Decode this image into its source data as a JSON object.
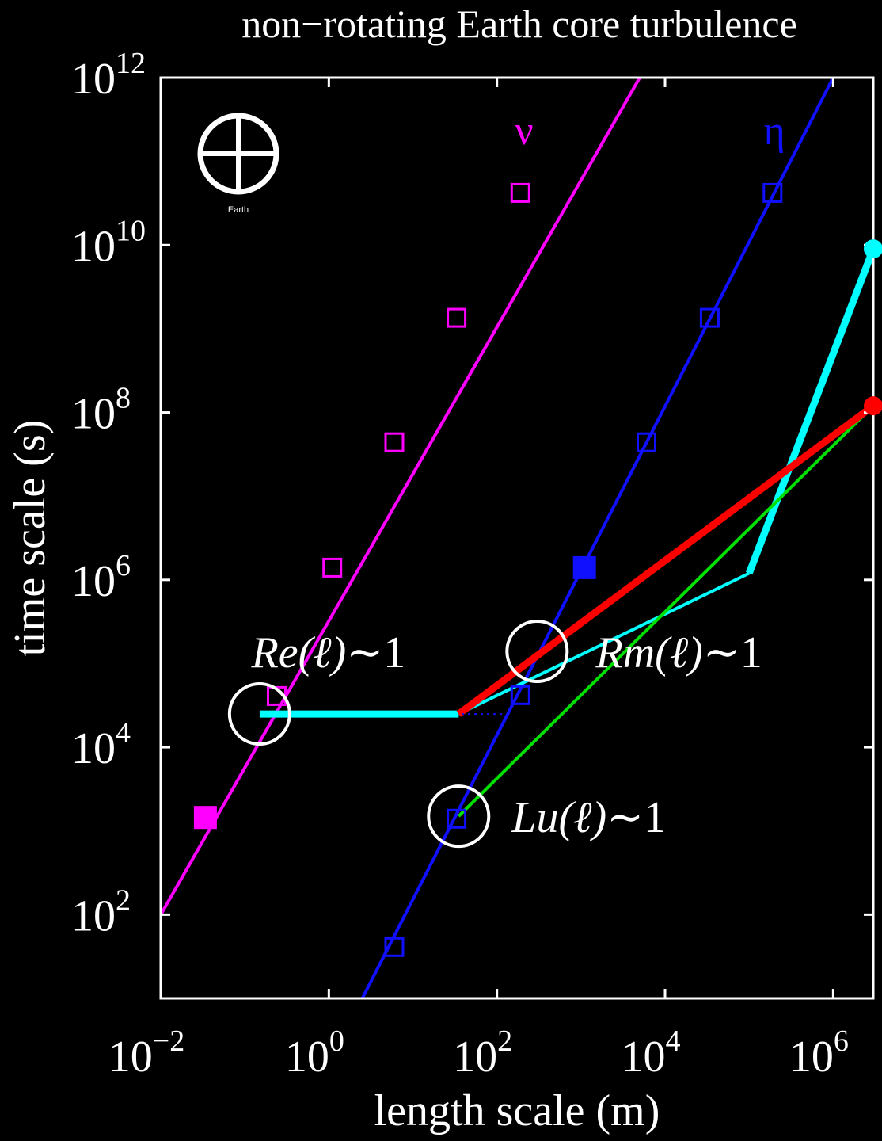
{
  "chart_data": {
    "type": "line",
    "title": "non−rotating Earth core turbulence",
    "xlabel": "length scale (m)",
    "ylabel": "time scale (s)",
    "xscale": "log",
    "yscale": "log",
    "xlim": [
      0.01,
      3000000
    ],
    "ylim": [
      10,
      1000000000000
    ],
    "xticks": [
      {
        "value": 0.01,
        "base": "10",
        "exp": "−2"
      },
      {
        "value": 1,
        "base": "10",
        "exp": "0"
      },
      {
        "value": 100,
        "base": "10",
        "exp": "2"
      },
      {
        "value": 10000,
        "base": "10",
        "exp": "4"
      },
      {
        "value": 1000000,
        "base": "10",
        "exp": "6"
      }
    ],
    "yticks": [
      {
        "value": 100,
        "base": "10",
        "exp": "2"
      },
      {
        "value": 10000,
        "base": "10",
        "exp": "4"
      },
      {
        "value": 1000000,
        "base": "10",
        "exp": "6"
      },
      {
        "value": 100000000,
        "base": "10",
        "exp": "8"
      },
      {
        "value": 10000000000,
        "base": "10",
        "exp": "10"
      },
      {
        "value": 1000000000000,
        "base": "10",
        "exp": "12"
      }
    ],
    "grid": false,
    "series": [
      {
        "name": "ν",
        "color": "#ff00ff",
        "x": [
          0.01,
          5000
        ],
        "y": [
          100,
          1000000000000
        ],
        "markers": [
          {
            "x": 0.034,
            "y": 1450,
            "filled": true
          },
          {
            "x": 0.24,
            "y": 41000,
            "filled": false
          },
          {
            "x": 1.1,
            "y": 1400000,
            "filled": false
          },
          {
            "x": 6.0,
            "y": 44000000,
            "filled": false
          },
          {
            "x": 33,
            "y": 1350000000,
            "filled": false
          },
          {
            "x": 190,
            "y": 42000000000,
            "filled": false
          }
        ]
      },
      {
        "name": "η",
        "color": "#1010ff",
        "x": [
          2.5,
          1000000
        ],
        "y": [
          10,
          1000000000000
        ],
        "markers": [
          {
            "x": 6.0,
            "y": 41,
            "filled": false
          },
          {
            "x": 33,
            "y": 1400,
            "filled": false
          },
          {
            "x": 190,
            "y": 42000,
            "filled": false
          },
          {
            "x": 1100,
            "y": 1400000,
            "filled": true
          },
          {
            "x": 6000,
            "y": 44000000,
            "filled": false
          },
          {
            "x": 34000,
            "y": 1350000000,
            "filled": false
          },
          {
            "x": 190000,
            "y": 42000000000,
            "filled": false
          }
        ]
      },
      {
        "color": "#00ffff",
        "width": 9,
        "x": [
          0.15,
          35
        ],
        "y": [
          25000,
          25000
        ]
      },
      {
        "color": "#00ffff",
        "width": 4,
        "x": [
          35,
          100000
        ],
        "y": [
          25000,
          1200000
        ]
      },
      {
        "color": "#00ffff",
        "width": 9,
        "x": [
          100000,
          3000000
        ],
        "y": [
          1200000,
          9000000000
        ],
        "end_dot": true
      },
      {
        "color": "#00e000",
        "width": 4,
        "x": [
          35,
          3000000
        ],
        "y": [
          1500,
          120000000
        ]
      },
      {
        "color": "#ff0000",
        "width": 9,
        "x": [
          35,
          3000000
        ],
        "y": [
          25000,
          120000000
        ],
        "end_dot": true
      },
      {
        "color": "#1010ff",
        "width": 2,
        "dotted": true,
        "x": [
          38,
          120
        ],
        "y": [
          25000,
          25000
        ]
      }
    ],
    "annotations": [
      {
        "text_main": "Re(ℓ)",
        "text_tail": "∼1",
        "circle": {
          "x": 0.15,
          "y": 25000
        },
        "label": {
          "x": 0.12,
          "y": 140000
        }
      },
      {
        "text_main": "Rm(ℓ)",
        "text_tail": "∼1",
        "circle": {
          "x": 300,
          "y": 140000
        },
        "label": {
          "x": 1500,
          "y": 140000
        }
      },
      {
        "text_main": "Lu(ℓ)",
        "text_tail": "∼1",
        "circle": {
          "x": 35,
          "y": 1500
        },
        "label": {
          "x": 150,
          "y": 1500
        }
      }
    ],
    "series_labels": [
      {
        "text": "ν",
        "color": "#ff00ff",
        "x": 210,
        "y": 160000000000
      },
      {
        "text": "η",
        "color": "#1010ff",
        "x": 200000,
        "y": 160000000000
      }
    ],
    "logo": {
      "label": "Earth"
    }
  }
}
